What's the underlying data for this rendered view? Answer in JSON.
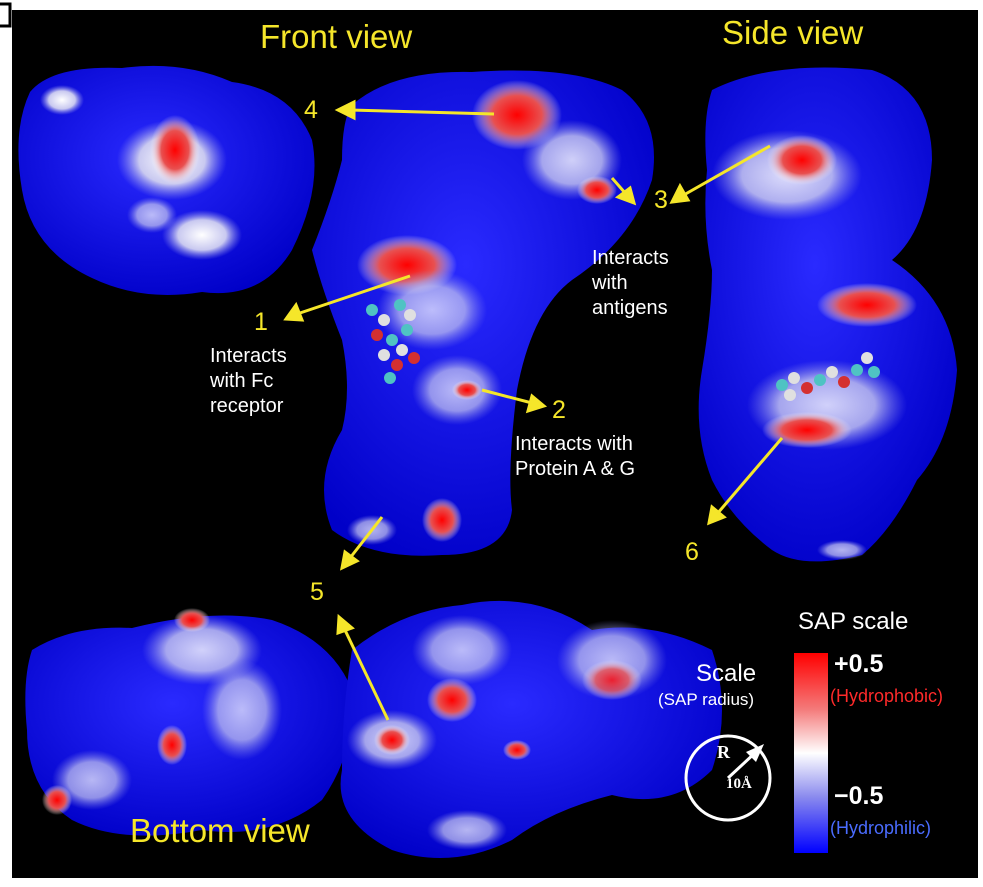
{
  "views": {
    "front": "Front view",
    "side": "Side view",
    "bottom": "Bottom view"
  },
  "numbers": [
    "1",
    "2",
    "3",
    "4",
    "5",
    "6"
  ],
  "notes": {
    "n1": [
      "Interacts",
      "with Fc",
      "receptor"
    ],
    "n2": [
      "Interacts with",
      "Protein A & G"
    ],
    "n3": [
      "Interacts",
      "with",
      "antigens"
    ]
  },
  "scale": {
    "title": "Scale",
    "subtitle": "(SAP radius)",
    "r_label": "R",
    "radius_label": "10Å"
  },
  "sap": {
    "title": "SAP scale",
    "max": "+0.5",
    "max_label": "(Hydrophobic)",
    "min": "−0.5",
    "min_label": "(Hydrophilic)"
  },
  "colors": {
    "hydrophilic": "#0000ff",
    "hydrophobic": "#ff0000",
    "neutral": "#ffffff",
    "annotation": "#f5e62a"
  }
}
